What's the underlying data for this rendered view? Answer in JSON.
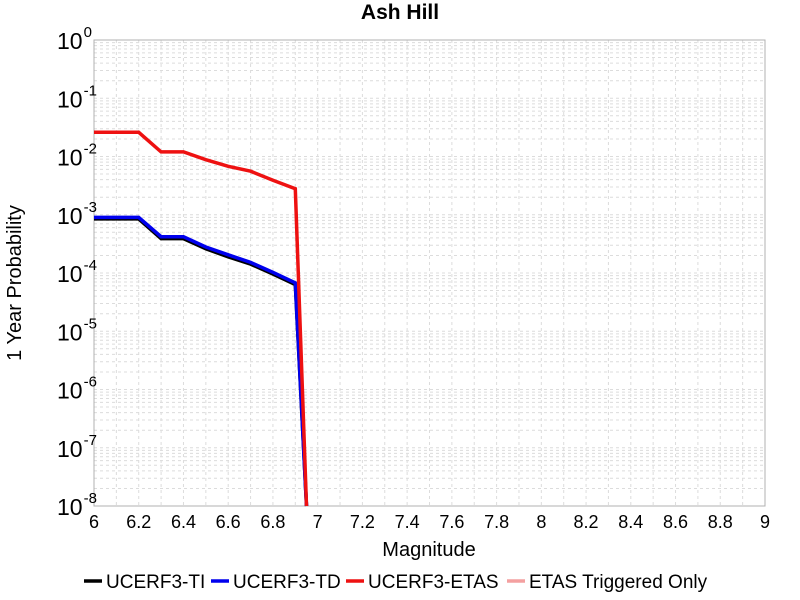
{
  "chart_data": {
    "type": "line",
    "title": "Ash Hill",
    "xlabel": "Magnitude",
    "ylabel": "1 Year Probability",
    "xlim": [
      6,
      9
    ],
    "ylim": [
      1e-08,
      1
    ],
    "yscale": "log",
    "x_ticks": [
      "6",
      "6.2",
      "6.4",
      "6.6",
      "6.8",
      "7",
      "7.2",
      "7.4",
      "7.6",
      "7.8",
      "8",
      "8.2",
      "8.4",
      "8.6",
      "8.8",
      "9"
    ],
    "y_tick_exponents": [
      "-8",
      "-7",
      "-6",
      "-5",
      "-4",
      "-3",
      "-2",
      "-1",
      "0"
    ],
    "y_tick_base": "10",
    "grid": true,
    "legend_position": "bottom",
    "series": [
      {
        "name": "UCERF3-TI",
        "color": "#000000",
        "x": [
          6.0,
          6.2,
          6.3,
          6.4,
          6.5,
          6.6,
          6.7,
          6.8,
          6.9,
          6.95
        ],
        "y": [
          0.00085,
          0.00085,
          0.00039,
          0.00039,
          0.00026,
          0.00019,
          0.000142,
          9.62e-05,
          6.32e-05,
          1e-08
        ]
      },
      {
        "name": "UCERF3-TD",
        "color": "#0000ee",
        "x": [
          6.0,
          6.2,
          6.3,
          6.4,
          6.5,
          6.6,
          6.7,
          6.8,
          6.9,
          6.95
        ],
        "y": [
          0.0009,
          0.0009,
          0.00042,
          0.00042,
          0.00028,
          0.000205,
          0.000152,
          0.000103,
          6.75e-05,
          1e-08
        ]
      },
      {
        "name": "UCERF3-ETAS",
        "color": "#ee1111",
        "x": [
          6.0,
          6.2,
          6.3,
          6.4,
          6.5,
          6.6,
          6.7,
          6.8,
          6.9,
          6.95
        ],
        "y": [
          0.026,
          0.026,
          0.012,
          0.012,
          0.0088,
          0.0068,
          0.0056,
          0.0039,
          0.0028,
          1e-08
        ]
      },
      {
        "name": "ETAS Triggered Only",
        "color": "#f4a0a0",
        "x": [],
        "y": []
      }
    ]
  }
}
